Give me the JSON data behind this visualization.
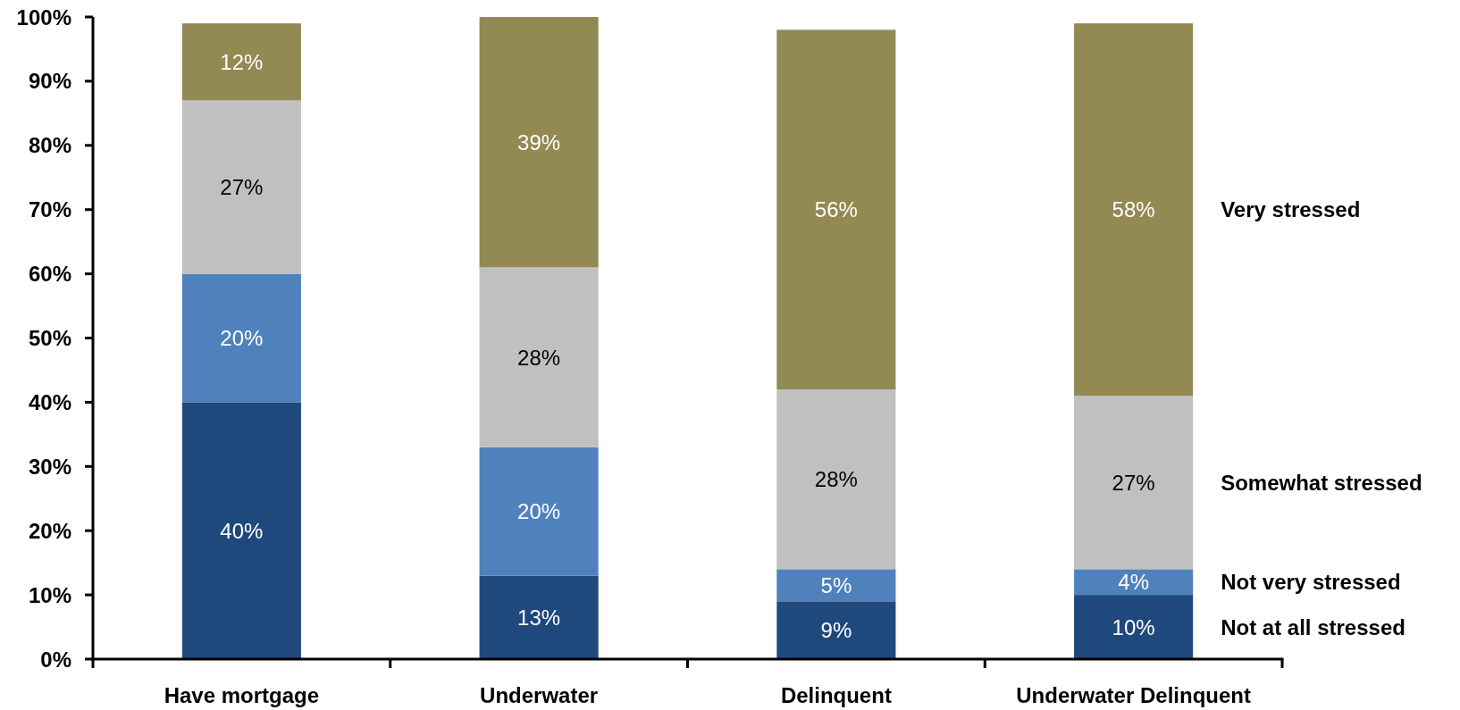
{
  "chart_data": {
    "type": "bar",
    "stacked": true,
    "categories": [
      "Have mortgage",
      "Underwater",
      "Delinquent",
      "Underwater Delinquent"
    ],
    "series": [
      {
        "name": "Not at all stressed",
        "color": "#1f497d",
        "values": [
          40,
          13,
          9,
          10
        ],
        "value_labels": [
          "40%",
          "13%",
          "9%",
          "10%"
        ]
      },
      {
        "name": "Not very stressed",
        "color": "#4f81bd",
        "values": [
          20,
          20,
          5,
          4
        ],
        "value_labels": [
          "20%",
          "20%",
          "5%",
          "4%"
        ]
      },
      {
        "name": "Somewhat stressed",
        "color": "#c0c0c0",
        "values": [
          27,
          28,
          28,
          27
        ],
        "value_labels": [
          "27%",
          "28%",
          "28%",
          "27%"
        ]
      },
      {
        "name": "Very stressed",
        "color": "#938953",
        "values": [
          12,
          39,
          56,
          58
        ],
        "value_labels": [
          "12%",
          "39%",
          "56%",
          "58%"
        ]
      }
    ],
    "ylim": [
      0,
      100
    ],
    "yticks": [
      {
        "value": 0,
        "label": "0%"
      },
      {
        "value": 10,
        "label": "10%"
      },
      {
        "value": 20,
        "label": "20%"
      },
      {
        "value": 30,
        "label": "30%"
      },
      {
        "value": 40,
        "label": "40%"
      },
      {
        "value": 50,
        "label": "50%"
      },
      {
        "value": 60,
        "label": "60%"
      },
      {
        "value": 70,
        "label": "70%"
      },
      {
        "value": 80,
        "label": "80%"
      },
      {
        "value": 90,
        "label": "90%"
      },
      {
        "value": 100,
        "label": "100%"
      }
    ]
  }
}
